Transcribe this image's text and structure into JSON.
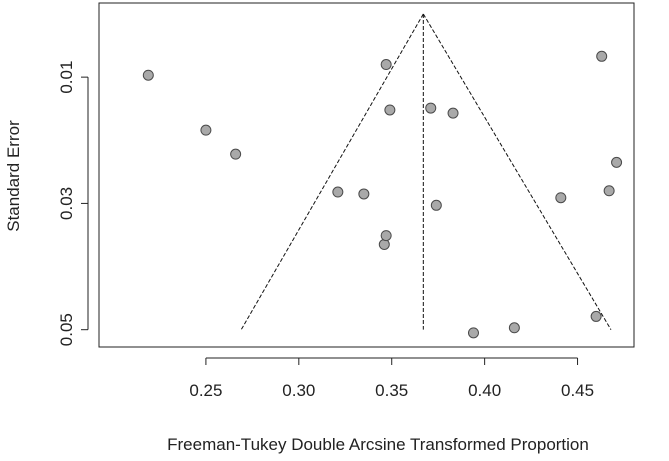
{
  "chart_data": {
    "type": "scatter",
    "title": "",
    "xlabel": "Freeman-Tukey Double Arcsine Transformed Proportion",
    "ylabel": "Standard Error",
    "xlim": [
      0.2,
      0.475
    ],
    "ylim": [
      0.0,
      0.051
    ],
    "y_reversed": true,
    "x_ticks": [
      "0.25",
      "0.30",
      "0.35",
      "0.40",
      "0.45"
    ],
    "y_ticks": [
      "0.01",
      "0.03",
      "0.05"
    ],
    "x_tick_values": [
      0.25,
      0.3,
      0.35,
      0.4,
      0.45
    ],
    "y_tick_values": [
      0.01,
      0.03,
      0.05
    ],
    "grid": false,
    "legend": "none",
    "funnel": {
      "center": 0.367,
      "apex_se": 0.0,
      "left_base_x": 0.269,
      "right_base_x": 0.468,
      "base_se": 0.05
    },
    "points": [
      {
        "x": 0.219,
        "y": 0.0097
      },
      {
        "x": 0.25,
        "y": 0.0184
      },
      {
        "x": 0.266,
        "y": 0.0222
      },
      {
        "x": 0.321,
        "y": 0.0282
      },
      {
        "x": 0.335,
        "y": 0.0285
      },
      {
        "x": 0.346,
        "y": 0.0365
      },
      {
        "x": 0.347,
        "y": 0.0351
      },
      {
        "x": 0.347,
        "y": 0.008
      },
      {
        "x": 0.349,
        "y": 0.0152
      },
      {
        "x": 0.371,
        "y": 0.0149
      },
      {
        "x": 0.374,
        "y": 0.0303
      },
      {
        "x": 0.383,
        "y": 0.0157
      },
      {
        "x": 0.394,
        "y": 0.0505
      },
      {
        "x": 0.416,
        "y": 0.0497
      },
      {
        "x": 0.441,
        "y": 0.0291
      },
      {
        "x": 0.46,
        "y": 0.0479
      },
      {
        "x": 0.463,
        "y": 0.0067
      },
      {
        "x": 0.467,
        "y": 0.028
      },
      {
        "x": 0.471,
        "y": 0.0235
      }
    ],
    "colors": {
      "point_fill": "#a9a9a9",
      "point_stroke": "#4a4a4a",
      "axis": "#222222",
      "funnel": "#111111"
    }
  }
}
